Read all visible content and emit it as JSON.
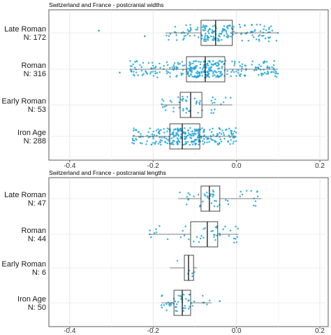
{
  "chart_data": [
    {
      "type": "boxplot",
      "title": "Switzerland and France - postcranial widths",
      "xlim": [
        -0.45,
        0.22
      ],
      "xticks": [
        -0.4,
        -0.2,
        0.0,
        0.2
      ],
      "xtick_labels": [
        "-0.4",
        "-0.2",
        "0.0",
        "0.2"
      ],
      "point_color": "#1aa3d9",
      "grid": true,
      "groups": [
        {
          "label": "Late Roman",
          "n_label": "N: 172",
          "n": 172,
          "whisker_low": -0.17,
          "q1": -0.085,
          "median": -0.05,
          "q3": -0.01,
          "whisker_high": 0.1,
          "outliers": [
            -0.33,
            -0.22
          ]
        },
        {
          "label": "Roman",
          "n_label": "N: 316",
          "n": 316,
          "whisker_low": -0.255,
          "q1": -0.12,
          "median": -0.075,
          "q3": -0.028,
          "whisker_high": 0.1,
          "outliers": [
            -0.28
          ]
        },
        {
          "label": "Early Roman",
          "n_label": "N: 53",
          "n": 53,
          "whisker_low": -0.18,
          "q1": -0.135,
          "median": -0.11,
          "q3": -0.083,
          "whisker_high": -0.01,
          "outliers": []
        },
        {
          "label": "Iron Age",
          "n_label": "N: 288",
          "n": 288,
          "whisker_low": -0.25,
          "q1": -0.16,
          "median": -0.13,
          "q3": -0.088,
          "whisker_high": 0.0,
          "outliers": []
        }
      ]
    },
    {
      "type": "boxplot",
      "title": "Switzerland and France - postcranial lengths",
      "xlim": [
        -0.45,
        0.22
      ],
      "xticks": [
        -0.4,
        -0.2,
        0.0,
        0.2
      ],
      "xtick_labels": [
        "-0.4",
        "-0.2",
        "0.0",
        "0.2"
      ],
      "point_color": "#1aa3d9",
      "grid": true,
      "groups": [
        {
          "label": "Late Roman",
          "n_label": "N: 47",
          "n": 47,
          "whisker_low": -0.14,
          "q1": -0.085,
          "median": -0.065,
          "q3": -0.04,
          "whisker_high": 0.06,
          "outliers": []
        },
        {
          "label": "Roman",
          "n_label": "N: 44",
          "n": 44,
          "whisker_low": -0.21,
          "q1": -0.11,
          "median": -0.07,
          "q3": -0.045,
          "whisker_high": 0.005,
          "outliers": []
        },
        {
          "label": "Early Roman",
          "n_label": "N: 6",
          "n": 6,
          "whisker_low": -0.16,
          "q1": -0.125,
          "median": -0.115,
          "q3": -0.103,
          "whisker_high": -0.095,
          "outliers": []
        },
        {
          "label": "Iron Age",
          "n_label": "N: 50",
          "n": 50,
          "whisker_low": -0.18,
          "q1": -0.15,
          "median": -0.13,
          "q3": -0.11,
          "whisker_high": -0.06,
          "outliers": [
            -0.04
          ]
        }
      ]
    }
  ]
}
